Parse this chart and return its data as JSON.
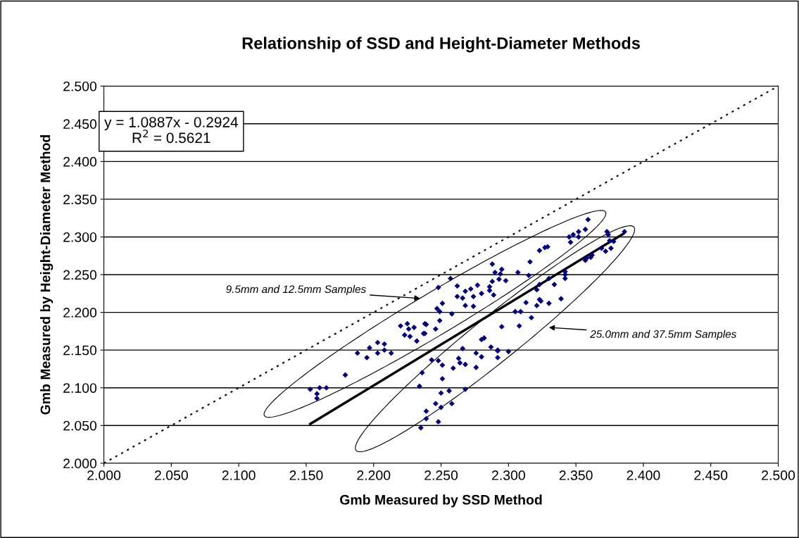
{
  "chart_data": {
    "type": "scatter",
    "title": "Relationship of SSD and Height-Diameter Methods",
    "xlabel": "Gmb Measured by SSD Method",
    "ylabel": "Gmb Measured by Height-Diameter Method",
    "xlim": [
      2.0,
      2.5
    ],
    "ylim": [
      2.0,
      2.5
    ],
    "xticks": [
      {
        "value": 2.0,
        "label": "2.000"
      },
      {
        "value": 2.05,
        "label": "2.050"
      },
      {
        "value": 2.1,
        "label": "2.100"
      },
      {
        "value": 2.15,
        "label": "2.150"
      },
      {
        "value": 2.2,
        "label": "2.200"
      },
      {
        "value": 2.25,
        "label": "2.250"
      },
      {
        "value": 2.3,
        "label": "2.300"
      },
      {
        "value": 2.35,
        "label": "2.350"
      },
      {
        "value": 2.4,
        "label": "2.400"
      },
      {
        "value": 2.45,
        "label": "2.450"
      },
      {
        "value": 2.5,
        "label": "2.500"
      }
    ],
    "yticks": [
      {
        "value": 2.0,
        "label": "2.000"
      },
      {
        "value": 2.05,
        "label": "2.050"
      },
      {
        "value": 2.1,
        "label": "2.100"
      },
      {
        "value": 2.15,
        "label": "2.150"
      },
      {
        "value": 2.2,
        "label": "2.200"
      },
      {
        "value": 2.25,
        "label": "2.250"
      },
      {
        "value": 2.3,
        "label": "2.300"
      },
      {
        "value": 2.35,
        "label": "2.350"
      },
      {
        "value": 2.4,
        "label": "2.400"
      },
      {
        "value": 2.45,
        "label": "2.450"
      },
      {
        "value": 2.5,
        "label": "2.500"
      }
    ],
    "grid": "y",
    "legend": false,
    "series": [
      {
        "color": "#000080",
        "marker": "diamond",
        "x": [
          2.153,
          2.158,
          2.158,
          2.16,
          2.165,
          2.179,
          2.188,
          2.195,
          2.197,
          2.203,
          2.203,
          2.208,
          2.208,
          2.213,
          2.22,
          2.223,
          2.225,
          2.226,
          2.227,
          2.23,
          2.232,
          2.237,
          2.238,
          2.257,
          2.248,
          2.262,
          2.262,
          2.268,
          2.266,
          2.272,
          2.274,
          2.277,
          2.28,
          2.268,
          2.274,
          2.251,
          2.247,
          2.249,
          2.258,
          2.249,
          2.239,
          2.246,
          2.238,
          2.286,
          2.286,
          2.288,
          2.288,
          2.29,
          2.289,
          2.293,
          2.294,
          2.295,
          2.298,
          2.307,
          2.315,
          2.316,
          2.323,
          2.327,
          2.329,
          2.321,
          2.323,
          2.33,
          2.334,
          2.323,
          2.324,
          2.313,
          2.321,
          2.33,
          2.339,
          2.305,
          2.309,
          2.317,
          2.295,
          2.308,
          2.28,
          2.282,
          2.266,
          2.287,
          2.292,
          2.292,
          2.3,
          2.276,
          2.28,
          2.292,
          2.263,
          2.264,
          2.268,
          2.243,
          2.248,
          2.251,
          2.259,
          2.276,
          2.251,
          2.236,
          2.268,
          2.256,
          2.25,
          2.246,
          2.258,
          2.25,
          2.239,
          2.239,
          2.248,
          2.235,
          2.234,
          2.359,
          2.357,
          2.352,
          2.348,
          2.345,
          2.352,
          2.346,
          2.373,
          2.374,
          2.386,
          2.378,
          2.375,
          2.369,
          2.372,
          2.376,
          2.362,
          2.361,
          2.358,
          2.357,
          2.342,
          2.342,
          2.342
        ],
        "values": [
          2.098,
          2.092,
          2.086,
          2.1,
          2.1,
          2.117,
          2.146,
          2.14,
          2.153,
          2.16,
          2.146,
          2.15,
          2.158,
          2.146,
          2.182,
          2.17,
          2.185,
          2.178,
          2.168,
          2.18,
          2.162,
          2.172,
          2.185,
          2.245,
          2.233,
          2.235,
          2.221,
          2.228,
          2.219,
          2.231,
          2.221,
          2.236,
          2.225,
          2.209,
          2.208,
          2.212,
          2.205,
          2.201,
          2.198,
          2.189,
          2.184,
          2.178,
          2.172,
          2.234,
          2.229,
          2.241,
          2.264,
          2.253,
          2.223,
          2.244,
          2.251,
          2.257,
          2.242,
          2.253,
          2.249,
          2.267,
          2.282,
          2.286,
          2.287,
          2.23,
          2.237,
          2.245,
          2.237,
          2.217,
          2.215,
          2.213,
          2.209,
          2.212,
          2.218,
          2.201,
          2.201,
          2.193,
          2.181,
          2.182,
          2.164,
          2.166,
          2.152,
          2.154,
          2.15,
          2.149,
          2.148,
          2.146,
          2.141,
          2.14,
          2.139,
          2.133,
          2.131,
          2.137,
          2.136,
          2.13,
          2.126,
          2.127,
          2.112,
          2.12,
          2.098,
          2.096,
          2.093,
          2.079,
          2.079,
          2.074,
          2.069,
          2.059,
          2.055,
          2.047,
          2.102,
          2.323,
          2.31,
          2.307,
          2.303,
          2.3,
          2.3,
          2.293,
          2.307,
          2.303,
          2.307,
          2.294,
          2.295,
          2.285,
          2.281,
          2.285,
          2.276,
          2.273,
          2.272,
          2.269,
          2.254,
          2.25,
          2.245
        ]
      },
      {
        "type": "line",
        "color": "#000000",
        "line_style": "solid",
        "x": [
          2.153,
          2.385
        ],
        "values": [
          2.052,
          2.304
        ]
      },
      {
        "type": "line",
        "color": "#000000",
        "line_style": "dotted",
        "x": [
          2.0,
          2.5
        ],
        "values": [
          2.0,
          2.5
        ]
      }
    ],
    "annotations": [
      "y = 1.0887x - 0.2924\nR$^{2}$ = 0.5621",
      "9.5mm and 12.5mm Samples",
      "25.0mm and 37.5mm Samples"
    ]
  }
}
